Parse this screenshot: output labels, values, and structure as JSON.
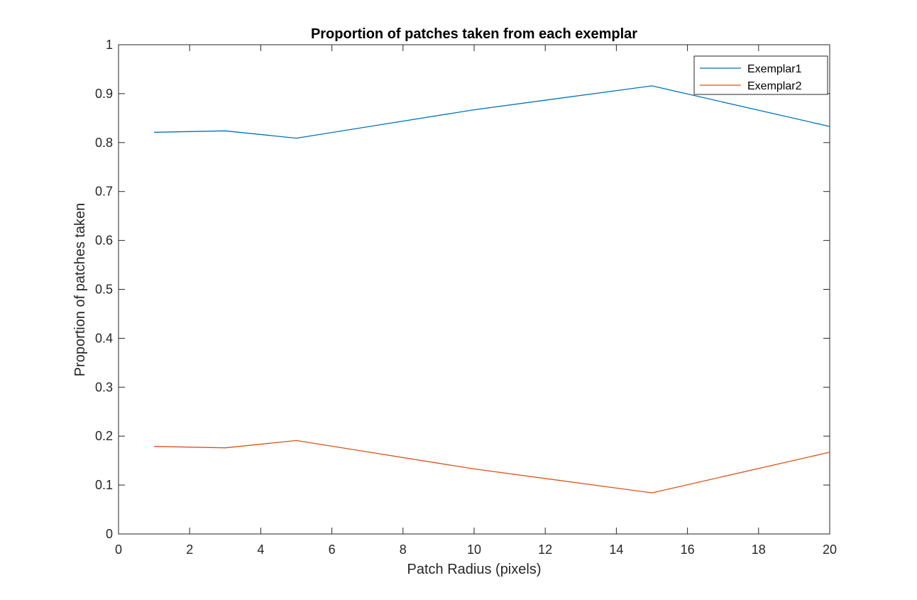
{
  "chart_data": {
    "type": "line",
    "title": "Proportion of patches taken from each exemplar",
    "xlabel": "Patch Radius (pixels)",
    "ylabel": "Proportion of patches taken",
    "xlim": [
      0,
      20
    ],
    "ylim": [
      0,
      1
    ],
    "xticks": [
      "0",
      "2",
      "4",
      "6",
      "8",
      "10",
      "12",
      "14",
      "16",
      "18",
      "20"
    ],
    "yticks": [
      "0",
      "0.1",
      "0.2",
      "0.3",
      "0.4",
      "0.5",
      "0.6",
      "0.7",
      "0.8",
      "0.9",
      "1"
    ],
    "grid": false,
    "legend_position": "top-right",
    "x": [
      1,
      3,
      5,
      10,
      15,
      20
    ],
    "series": [
      {
        "name": "Exemplar1",
        "color": "#0072BD",
        "values": [
          0.821,
          0.824,
          0.809,
          0.867,
          0.916,
          0.833
        ]
      },
      {
        "name": "Exemplar2",
        "color": "#D95319",
        "values": [
          0.179,
          0.176,
          0.191,
          0.133,
          0.084,
          0.167
        ]
      }
    ]
  }
}
